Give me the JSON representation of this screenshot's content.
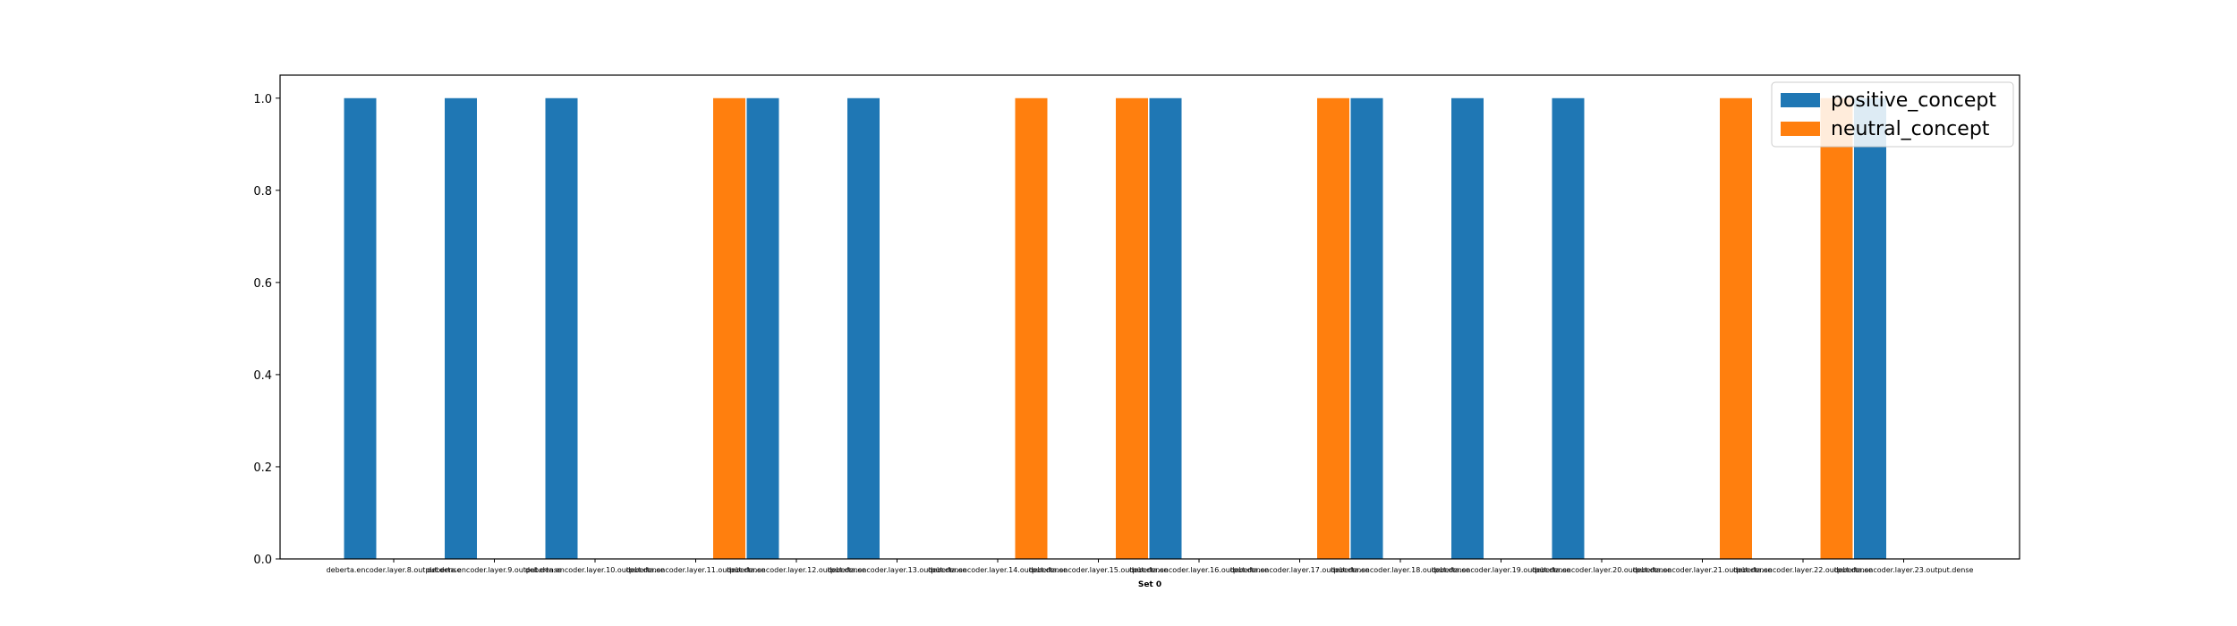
{
  "chart_data": {
    "type": "bar",
    "title": "",
    "xlabel": "Set 0",
    "ylabel": "",
    "ylim": [
      0,
      1.05
    ],
    "yticks": [
      "0.0",
      "0.2",
      "0.4",
      "0.6",
      "0.8",
      "1.0"
    ],
    "grid": false,
    "legend_position": "top-right",
    "categories": [
      "deberta.encoder.layer.8.output.dense",
      "deberta.encoder.layer.9.output.dense",
      "deberta.encoder.layer.10.output.dense",
      "deberta.encoder.layer.11.output.dense",
      "deberta.encoder.layer.12.output.dense",
      "deberta.encoder.layer.13.output.dense",
      "deberta.encoder.layer.14.output.dense",
      "deberta.encoder.layer.15.output.dense",
      "deberta.encoder.layer.16.output.dense",
      "deberta.encoder.layer.17.output.dense",
      "deberta.encoder.layer.18.output.dense",
      "deberta.encoder.layer.19.output.dense",
      "deberta.encoder.layer.20.output.dense",
      "deberta.encoder.layer.21.output.dense",
      "deberta.encoder.layer.22.output.dense",
      "deberta.encoder.layer.23.output.dense"
    ],
    "series": [
      {
        "name": "positive_concept",
        "color": "#1f77b4",
        "values": [
          1,
          1,
          1,
          0,
          1,
          1,
          0,
          0,
          1,
          0,
          1,
          1,
          1,
          0,
          0,
          1
        ]
      },
      {
        "name": "neutral_concept",
        "color": "#ff7f0e",
        "values": [
          0,
          0,
          0,
          1,
          0,
          0,
          1,
          1,
          0,
          1,
          0,
          0,
          0,
          1,
          1,
          0
        ]
      }
    ]
  }
}
